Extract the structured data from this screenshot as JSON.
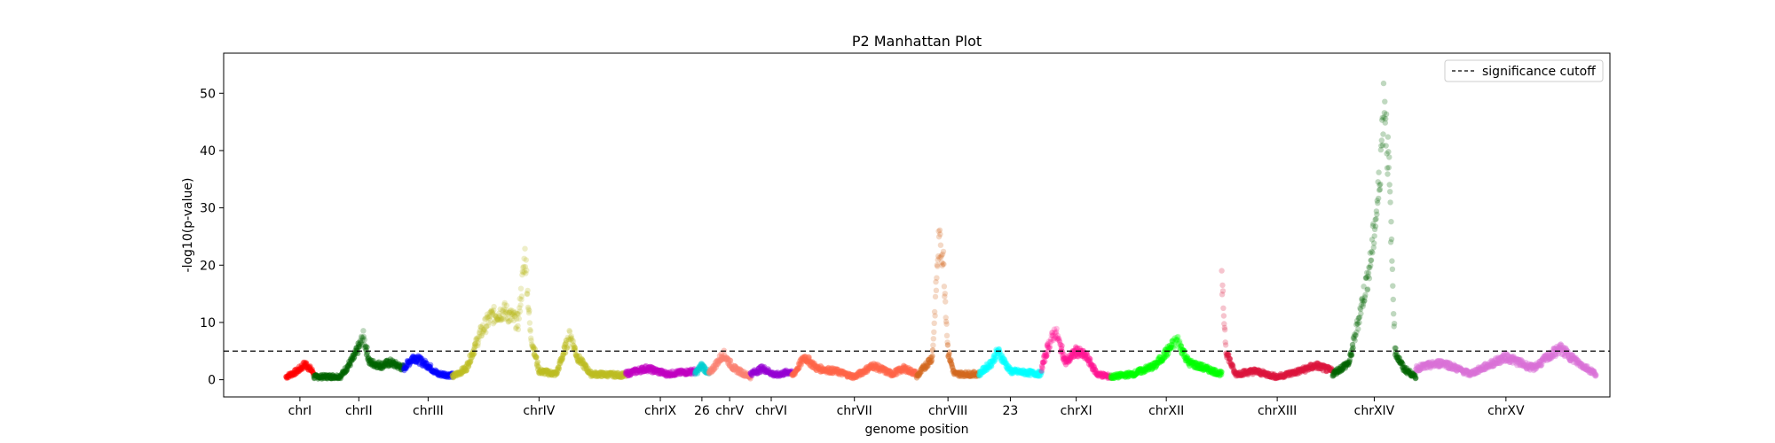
{
  "chart_data": {
    "type": "scatter",
    "title": "P2 Manhattan Plot",
    "xlabel": "genome position",
    "ylabel": "-log10(p-value)",
    "xlim": [
      0,
      1000
    ],
    "ylim": [
      -3,
      57
    ],
    "yticks": [
      0,
      10,
      20,
      30,
      40,
      50
    ],
    "threshold": {
      "value": 5,
      "label": "significance cutoff",
      "style": "dashed"
    },
    "legend_position": "top-right",
    "grid": false,
    "chromosomes": [
      {
        "label": "chrI",
        "start": 45,
        "end": 65,
        "color": "#ff0000",
        "profile": [
          [
            0,
            0.5
          ],
          [
            0.4,
            1.5
          ],
          [
            0.7,
            2.8
          ],
          [
            1,
            1.2
          ]
        ]
      },
      {
        "label": "chrII",
        "start": 65,
        "end": 130,
        "color": "#006400",
        "profile": [
          [
            0,
            0.5
          ],
          [
            0.3,
            0.6
          ],
          [
            0.45,
            4
          ],
          [
            0.55,
            7.5
          ],
          [
            0.62,
            3
          ],
          [
            0.75,
            2.5
          ],
          [
            0.85,
            3
          ],
          [
            1,
            2
          ]
        ]
      },
      {
        "label": "chrIII",
        "start": 130,
        "end": 165,
        "color": "#0000ff",
        "profile": [
          [
            0,
            2
          ],
          [
            0.2,
            4
          ],
          [
            0.5,
            2.5
          ],
          [
            0.7,
            1
          ],
          [
            1,
            0.8
          ]
        ]
      },
      {
        "label": "chrIV",
        "start": 165,
        "end": 290,
        "color": "#bcbd22",
        "profile": [
          [
            0,
            0.5
          ],
          [
            0.08,
            2
          ],
          [
            0.16,
            8
          ],
          [
            0.22,
            11
          ],
          [
            0.3,
            12
          ],
          [
            0.38,
            10
          ],
          [
            0.42,
            22
          ],
          [
            0.45,
            8
          ],
          [
            0.5,
            1.5
          ],
          [
            0.6,
            1
          ],
          [
            0.68,
            8
          ],
          [
            0.72,
            4
          ],
          [
            0.8,
            1
          ],
          [
            1,
            0.8
          ]
        ]
      },
      {
        "label": "chrIX",
        "start": 290,
        "end": 340,
        "color": "#c000c0",
        "profile": [
          [
            0,
            1
          ],
          [
            0.3,
            2
          ],
          [
            0.6,
            1
          ],
          [
            1,
            1.5
          ]
        ]
      },
      {
        "label": "26",
        "start": 340,
        "end": 350,
        "color": "#00ced1",
        "profile": [
          [
            0,
            1
          ],
          [
            0.5,
            2.5
          ],
          [
            1,
            1
          ]
        ]
      },
      {
        "label": "chrV",
        "start": 350,
        "end": 380,
        "color": "#fa8072",
        "profile": [
          [
            0,
            1
          ],
          [
            0.35,
            4.5
          ],
          [
            0.6,
            2
          ],
          [
            1,
            0.5
          ]
        ]
      },
      {
        "label": "chrVI",
        "start": 380,
        "end": 410,
        "color": "#9400d3",
        "profile": [
          [
            0,
            1
          ],
          [
            0.3,
            2
          ],
          [
            0.6,
            0.8
          ],
          [
            1,
            1.5
          ]
        ]
      },
      {
        "label": "chrVII",
        "start": 410,
        "end": 500,
        "color": "#ff6347",
        "profile": [
          [
            0,
            0.5
          ],
          [
            0.1,
            4
          ],
          [
            0.2,
            2
          ],
          [
            0.35,
            1.5
          ],
          [
            0.5,
            0.5
          ],
          [
            0.65,
            2.5
          ],
          [
            0.8,
            1
          ],
          [
            0.9,
            2
          ],
          [
            1,
            1
          ]
        ]
      },
      {
        "label": "chrVIII",
        "start": 500,
        "end": 545,
        "color": "#d2691e",
        "profile": [
          [
            0,
            0.5
          ],
          [
            0.25,
            4
          ],
          [
            0.35,
            24
          ],
          [
            0.42,
            22
          ],
          [
            0.5,
            5
          ],
          [
            0.6,
            1
          ],
          [
            1,
            1
          ]
        ]
      },
      {
        "label": "23",
        "start": 545,
        "end": 590,
        "color": "#00ffff",
        "profile": [
          [
            0,
            1
          ],
          [
            0.2,
            3
          ],
          [
            0.3,
            5
          ],
          [
            0.5,
            1.5
          ],
          [
            1,
            1
          ]
        ]
      },
      {
        "label": "chrXI",
        "start": 590,
        "end": 640,
        "color": "#ff1493",
        "profile": [
          [
            0,
            2
          ],
          [
            0.1,
            6
          ],
          [
            0.2,
            8.5
          ],
          [
            0.35,
            3
          ],
          [
            0.5,
            5
          ],
          [
            0.65,
            4
          ],
          [
            0.8,
            1
          ],
          [
            1,
            0.5
          ]
        ]
      },
      {
        "label": "chrXII",
        "start": 640,
        "end": 720,
        "color": "#00ff00",
        "profile": [
          [
            0,
            0.5
          ],
          [
            0.2,
            1
          ],
          [
            0.4,
            2.5
          ],
          [
            0.6,
            7
          ],
          [
            0.7,
            3
          ],
          [
            0.85,
            2
          ],
          [
            1,
            1
          ]
        ]
      },
      {
        "label": "chrXIII",
        "start": 720,
        "end": 800,
        "color": "#dc143c",
        "profile": [
          [
            0,
            17
          ],
          [
            0.04,
            5
          ],
          [
            0.12,
            1
          ],
          [
            0.3,
            1.5
          ],
          [
            0.5,
            0.5
          ],
          [
            0.7,
            1.5
          ],
          [
            0.85,
            2.5
          ],
          [
            1,
            1.5
          ]
        ]
      },
      {
        "label": "chrXIV",
        "start": 800,
        "end": 860,
        "color": "#006400",
        "profile": [
          [
            0,
            1
          ],
          [
            0.2,
            3
          ],
          [
            0.45,
            20
          ],
          [
            0.55,
            32
          ],
          [
            0.62,
            50
          ],
          [
            0.68,
            35
          ],
          [
            0.75,
            5
          ],
          [
            0.85,
            2
          ],
          [
            1,
            0.5
          ]
        ]
      },
      {
        "label": "chrXV",
        "start": 860,
        "end": 990,
        "color": "#da70d6",
        "profile": [
          [
            0,
            2
          ],
          [
            0.15,
            3
          ],
          [
            0.3,
            1
          ],
          [
            0.5,
            4
          ],
          [
            0.65,
            2
          ],
          [
            0.8,
            5.5
          ],
          [
            0.9,
            3
          ],
          [
            1,
            1
          ]
        ]
      }
    ]
  }
}
